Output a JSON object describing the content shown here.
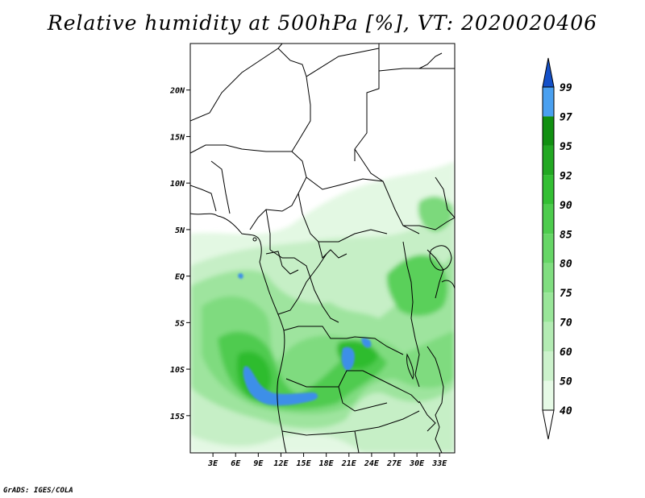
{
  "title": "Relative humidity at 500hPa [%], VT: 2020020406",
  "credit": "GrADS: IGES/COLA",
  "map": {
    "lat_range": [
      -19,
      25
    ],
    "lon_range": [
      0,
      35
    ],
    "lat_ticks": [
      {
        "value": 20,
        "label": "20N"
      },
      {
        "value": 15,
        "label": "15N"
      },
      {
        "value": 10,
        "label": "10N"
      },
      {
        "value": 5,
        "label": "5N"
      },
      {
        "value": 0,
        "label": "EQ"
      },
      {
        "value": -5,
        "label": "5S"
      },
      {
        "value": -10,
        "label": "10S"
      },
      {
        "value": -15,
        "label": "15S"
      }
    ],
    "lon_ticks": [
      {
        "value": 3,
        "label": "3E"
      },
      {
        "value": 6,
        "label": "6E"
      },
      {
        "value": 9,
        "label": "9E"
      },
      {
        "value": 12,
        "label": "12E"
      },
      {
        "value": 15,
        "label": "15E"
      },
      {
        "value": 18,
        "label": "18E"
      },
      {
        "value": 21,
        "label": "21E"
      },
      {
        "value": 24,
        "label": "24E"
      },
      {
        "value": 27,
        "label": "27E"
      },
      {
        "value": 30,
        "label": "30E"
      },
      {
        "value": 33,
        "label": "33E"
      }
    ]
  },
  "colorbar": {
    "levels": [
      "40",
      "50",
      "60",
      "70",
      "75",
      "80",
      "85",
      "90",
      "92",
      "95",
      "97",
      "99"
    ],
    "colors": [
      "#e6fae6",
      "#ccf2cc",
      "#b3ebb3",
      "#99e699",
      "#80de80",
      "#66d666",
      "#4dcc4d",
      "#33bf33",
      "#22a822",
      "#119011",
      "#4aa0f0",
      "#2878e0",
      "#1450c8"
    ]
  }
}
